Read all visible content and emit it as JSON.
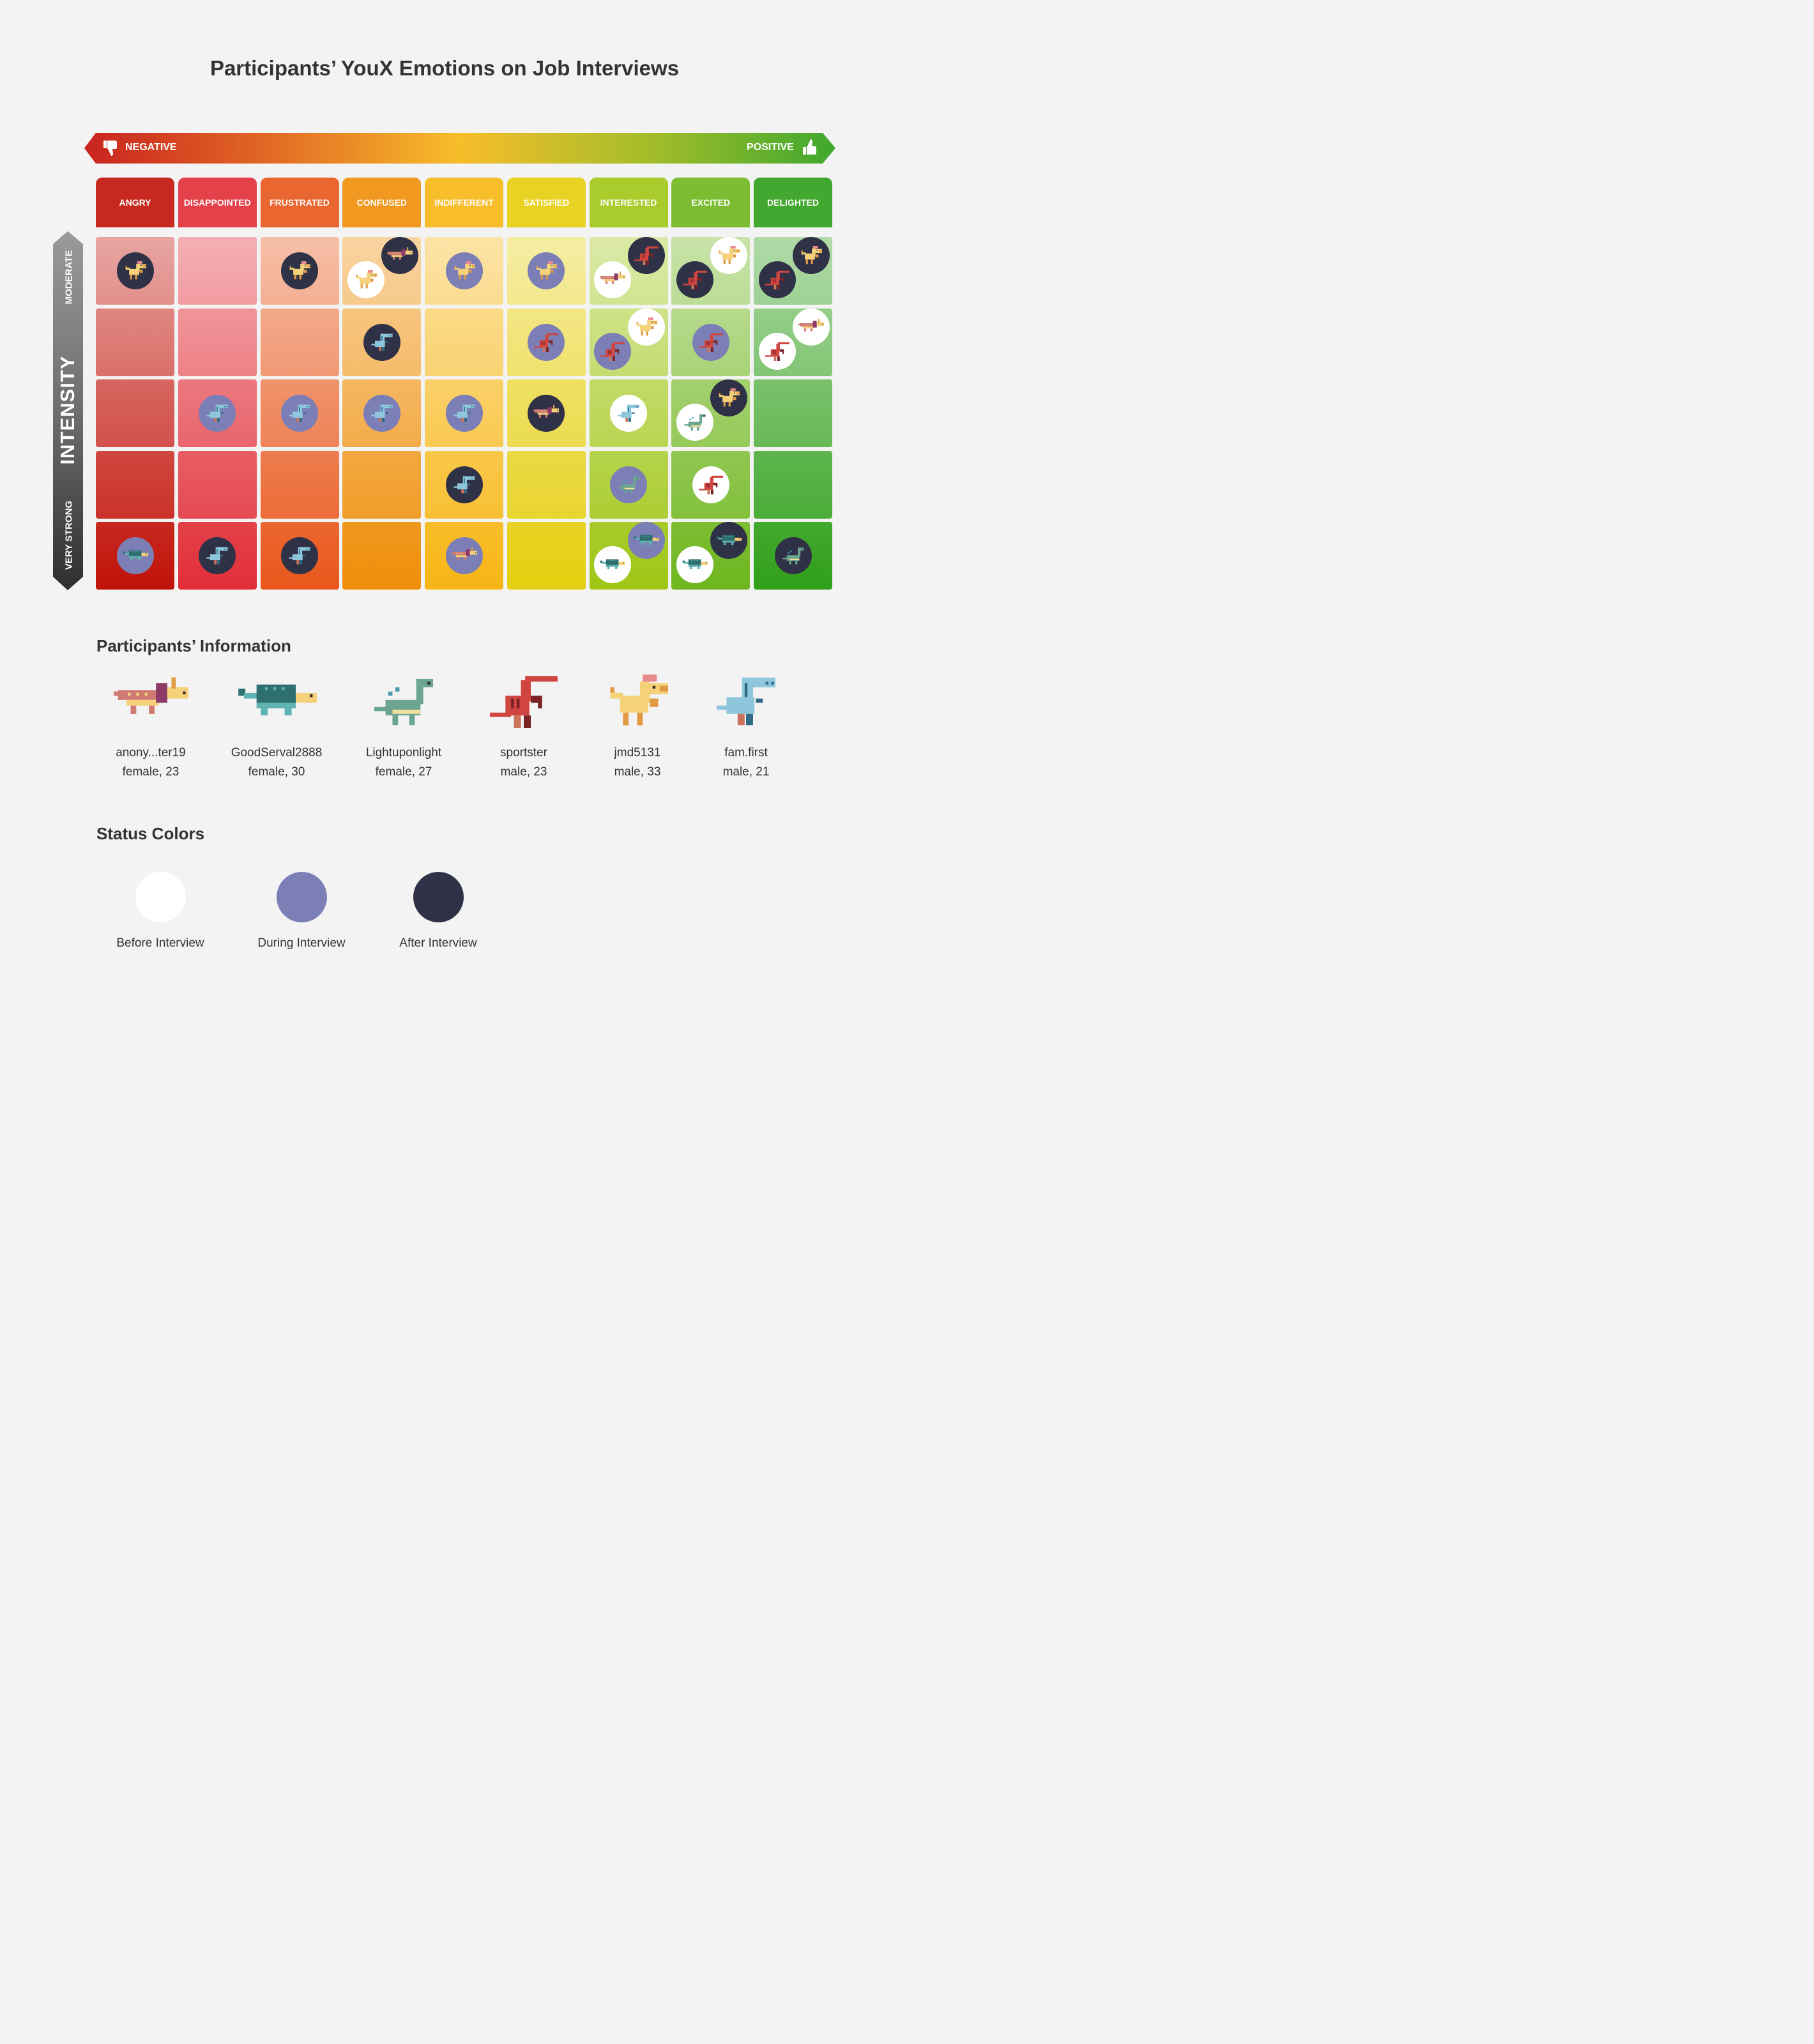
{
  "title": "Participants’ YouX Emotions on Job Interviews",
  "scale": {
    "negative_label": "NEGATIVE",
    "positive_label": "POSITIVE",
    "negative_icon": "thumbs-down-icon",
    "positive_icon": "thumbs-up-icon"
  },
  "intensity": {
    "title": "INTENSITY",
    "top_label": "MODERATE",
    "bottom_label": "VERY STRONG"
  },
  "emotions": [
    {
      "label": "ANGRY",
      "color": "#c7281f"
    },
    {
      "label": "DISAPPOINTED",
      "color": "#e4414b"
    },
    {
      "label": "FRUSTRATED",
      "color": "#ea6630"
    },
    {
      "label": "CONFUSED",
      "color": "#f0981f"
    },
    {
      "label": "INDIFFERENT",
      "color": "#f8bd2a"
    },
    {
      "label": "SATISFIED",
      "color": "#e8d325"
    },
    {
      "label": "INTERESTED",
      "color": "#a9cb2b"
    },
    {
      "label": "EXCITED",
      "color": "#7cbd33"
    },
    {
      "label": "DELIGHTED",
      "color": "#43a82f"
    }
  ],
  "participants": [
    {
      "id": "anon",
      "name": "anony...ter19",
      "meta": "female, 23",
      "icon": "horned-dino-icon"
    },
    {
      "id": "good",
      "name": "GoodServal2888",
      "meta": "female, 30",
      "icon": "ankylosaur-icon"
    },
    {
      "id": "light",
      "name": "Lightuponlight",
      "meta": "female, 27",
      "icon": "sauropod-icon"
    },
    {
      "id": "sport",
      "name": "sportster",
      "meta": "male, 23",
      "icon": "raptor-icon"
    },
    {
      "id": "jmd",
      "name": "jmd5131",
      "meta": "male, 33",
      "icon": "crested-dino-icon"
    },
    {
      "id": "fam",
      "name": "fam.first",
      "meta": "male, 21",
      "icon": "trex-icon"
    }
  ],
  "statuses": [
    {
      "key": "before",
      "label": "Before Interview",
      "color": "#ffffff"
    },
    {
      "key": "during",
      "label": "During Interview",
      "color": "#7b7fb5"
    },
    {
      "key": "after",
      "label": "After Interview",
      "color": "#2f3146"
    }
  ],
  "sections": {
    "participants_heading": "Participants’ Information",
    "status_heading": "Status Colors"
  },
  "placements": [
    {
      "emotion": "ANGRY",
      "level": 1,
      "participant": "jmd",
      "status": "after"
    },
    {
      "emotion": "FRUSTRATED",
      "level": 1,
      "participant": "jmd",
      "status": "after"
    },
    {
      "emotion": "CONFUSED",
      "level": 1,
      "participant": "anon",
      "status": "after"
    },
    {
      "emotion": "CONFUSED",
      "level": 1,
      "participant": "jmd",
      "status": "before"
    },
    {
      "emotion": "INDIFFERENT",
      "level": 1,
      "participant": "jmd",
      "status": "during"
    },
    {
      "emotion": "SATISFIED",
      "level": 1,
      "participant": "jmd",
      "status": "during"
    },
    {
      "emotion": "INTERESTED",
      "level": 1,
      "participant": "sport",
      "status": "after"
    },
    {
      "emotion": "INTERESTED",
      "level": 1,
      "participant": "anon",
      "status": "before"
    },
    {
      "emotion": "EXCITED",
      "level": 1,
      "participant": "jmd",
      "status": "before"
    },
    {
      "emotion": "EXCITED",
      "level": 1,
      "participant": "sport",
      "status": "after"
    },
    {
      "emotion": "DELIGHTED",
      "level": 1,
      "participant": "jmd",
      "status": "after"
    },
    {
      "emotion": "DELIGHTED",
      "level": 1,
      "participant": "sport",
      "status": "after"
    },
    {
      "emotion": "CONFUSED",
      "level": 2,
      "participant": "fam",
      "status": "after"
    },
    {
      "emotion": "SATISFIED",
      "level": 2,
      "participant": "sport",
      "status": "during"
    },
    {
      "emotion": "INTERESTED",
      "level": 2,
      "participant": "jmd",
      "status": "before"
    },
    {
      "emotion": "INTERESTED",
      "level": 2,
      "participant": "sport",
      "status": "during"
    },
    {
      "emotion": "EXCITED",
      "level": 2,
      "participant": "sport",
      "status": "during"
    },
    {
      "emotion": "DELIGHTED",
      "level": 2,
      "participant": "anon",
      "status": "before"
    },
    {
      "emotion": "DELIGHTED",
      "level": 2,
      "participant": "sport",
      "status": "before"
    },
    {
      "emotion": "DISAPPOINTED",
      "level": 3,
      "participant": "fam",
      "status": "during"
    },
    {
      "emotion": "FRUSTRATED",
      "level": 3,
      "participant": "fam",
      "status": "during"
    },
    {
      "emotion": "CONFUSED",
      "level": 3,
      "participant": "fam",
      "status": "during"
    },
    {
      "emotion": "INDIFFERENT",
      "level": 3,
      "participant": "fam",
      "status": "during"
    },
    {
      "emotion": "SATISFIED",
      "level": 3,
      "participant": "anon",
      "status": "after"
    },
    {
      "emotion": "INTERESTED",
      "level": 3,
      "participant": "fam",
      "status": "before"
    },
    {
      "emotion": "EXCITED",
      "level": 3,
      "participant": "jmd",
      "status": "after"
    },
    {
      "emotion": "EXCITED",
      "level": 3,
      "participant": "light",
      "status": "before"
    },
    {
      "emotion": "INDIFFERENT",
      "level": 4,
      "participant": "fam",
      "status": "after"
    },
    {
      "emotion": "INTERESTED",
      "level": 4,
      "participant": "light",
      "status": "during"
    },
    {
      "emotion": "EXCITED",
      "level": 4,
      "participant": "sport",
      "status": "before"
    },
    {
      "emotion": "ANGRY",
      "level": 5,
      "participant": "good",
      "status": "during"
    },
    {
      "emotion": "DISAPPOINTED",
      "level": 5,
      "participant": "fam",
      "status": "after"
    },
    {
      "emotion": "FRUSTRATED",
      "level": 5,
      "participant": "fam",
      "status": "after"
    },
    {
      "emotion": "INDIFFERENT",
      "level": 5,
      "participant": "anon",
      "status": "during"
    },
    {
      "emotion": "INTERESTED",
      "level": 5,
      "participant": "good",
      "status": "during"
    },
    {
      "emotion": "INTERESTED",
      "level": 5,
      "participant": "good",
      "status": "before"
    },
    {
      "emotion": "EXCITED",
      "level": 5,
      "participant": "good",
      "status": "after"
    },
    {
      "emotion": "EXCITED",
      "level": 5,
      "participant": "good",
      "status": "before"
    },
    {
      "emotion": "DELIGHTED",
      "level": 5,
      "participant": "light",
      "status": "after"
    }
  ]
}
